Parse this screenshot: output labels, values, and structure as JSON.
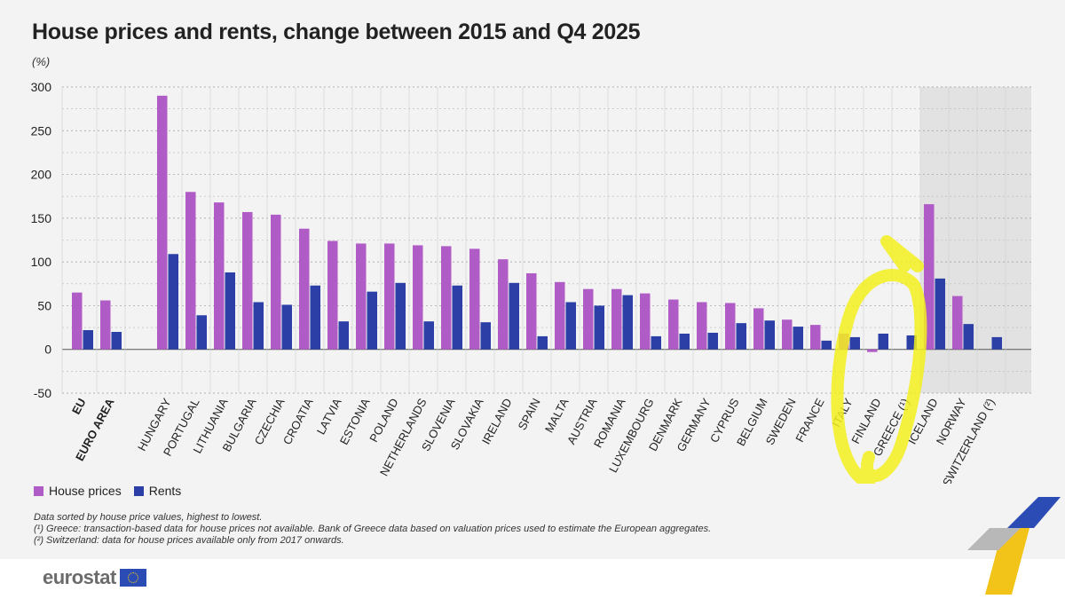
{
  "title": "House prices and rents, change between 2015 and Q4 2025",
  "unit": "(%)",
  "legend": {
    "house": "House prices",
    "rents": "Rents"
  },
  "notes": {
    "line1": "Data sorted by house price values, highest to lowest.",
    "line2": "(¹) Greece: transaction-based data for house prices not available. Bank of Greece data based on valuation prices used to estimate the European aggregates.",
    "line3": "(²) Switzerland: data for house prices available only from 2017 onwards."
  },
  "brand": {
    "name": "eurostat"
  },
  "colors": {
    "house": "#b05cc6",
    "rents": "#2b3fa7",
    "highlight": "#f2ef1d"
  },
  "chart_data": {
    "type": "bar",
    "ylim": [
      -50,
      300
    ],
    "yticks": [
      -50,
      0,
      50,
      100,
      150,
      200,
      250,
      300
    ],
    "categories": [
      "EU",
      "EURO AREA",
      "HUNGARY",
      "PORTUGAL",
      "LITHUANIA",
      "BULGARIA",
      "CZECHIA",
      "CROATIA",
      "LATVIA",
      "ESTONIA",
      "POLAND",
      "NETHERLANDS",
      "SLOVENIA",
      "SLOVAKIA",
      "IRELAND",
      "SPAIN",
      "MALTA",
      "AUSTRIA",
      "ROMANIA",
      "LUXEMBOURG",
      "DENMARK",
      "GERMANY",
      "CYPRUS",
      "BELGIUM",
      "SWEDEN",
      "FRANCE",
      "ITALY",
      "FINLAND",
      "GREECE (¹)",
      "ICELAND",
      "NORWAY",
      "SWITZERLAND (²)"
    ],
    "bold_categories": [
      "EU",
      "EURO AREA"
    ],
    "shaded_categories": [
      "ICELAND",
      "NORWAY",
      "SWITZERLAND (²)"
    ],
    "series": [
      {
        "name": "House prices",
        "values": [
          65,
          56,
          290,
          180,
          168,
          157,
          154,
          138,
          124,
          121,
          121,
          119,
          118,
          115,
          103,
          87,
          77,
          69,
          69,
          64,
          57,
          54,
          53,
          47,
          34,
          28,
          18,
          -3,
          null,
          166,
          61,
          null
        ]
      },
      {
        "name": "Rents",
        "values": [
          22,
          20,
          109,
          39,
          88,
          54,
          51,
          73,
          32,
          66,
          76,
          32,
          73,
          31,
          76,
          15,
          54,
          50,
          62,
          15,
          18,
          19,
          30,
          33,
          26,
          10,
          14,
          18,
          16,
          81,
          29,
          14
        ]
      }
    ]
  }
}
